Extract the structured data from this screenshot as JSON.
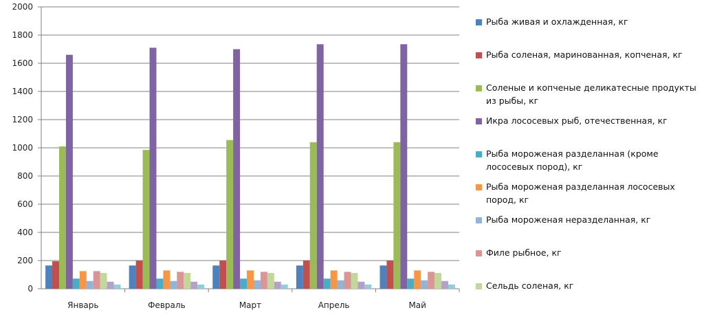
{
  "chart_data": {
    "type": "bar",
    "title": "",
    "xlabel": "",
    "ylabel": "",
    "ylim": [
      0,
      2000
    ],
    "yticks": [
      0,
      200,
      400,
      600,
      800,
      1000,
      1200,
      1400,
      1600,
      1800,
      2000
    ],
    "grid": true,
    "legend_position": "right",
    "categories": [
      "Январь",
      "Февраль",
      "Март",
      "Апрель",
      "Май"
    ],
    "series": [
      {
        "name": "Рыба живая  и охлажденная,  кг",
        "color": "#4f81bd",
        "values": [
          165,
          165,
          165,
          165,
          165
        ]
      },
      {
        "name": "Рыба соленая, маринованная,  копченая,  кг",
        "color": "#c0504d",
        "values": [
          195,
          200,
          200,
          200,
          200
        ]
      },
      {
        "name": "Соленые и копченые деликатесные продукты из рыбы, кг",
        "color": "#9bbb59",
        "values": [
          1010,
          985,
          1055,
          1040,
          1040
        ]
      },
      {
        "name": "Икра лососевых рыб, отечественная, кг",
        "color": "#8064a2",
        "values": [
          1660,
          1710,
          1700,
          1735,
          1735
        ]
      },
      {
        "name": "Рыба мороженая разделанная (кроме лососевых пород), кг",
        "color": "#4bacc6",
        "values": [
          72,
          72,
          72,
          72,
          72
        ]
      },
      {
        "name": "Рыба мороженая разделанная лососевых пород, кг",
        "color": "#f79646",
        "values": [
          125,
          130,
          130,
          130,
          130
        ]
      },
      {
        "name": "Рыба мороженая неразделанная, кг",
        "color": "#95b3d7",
        "values": [
          55,
          55,
          60,
          60,
          60
        ]
      },
      {
        "name": "Филе рыбное, кг",
        "color": "#d99694",
        "values": [
          125,
          120,
          120,
          120,
          120
        ]
      },
      {
        "name": "Сельдь соленая, кг",
        "color": "#c3d69b",
        "values": [
          112,
          112,
          112,
          112,
          112
        ]
      },
      {
        "name": "",
        "color": "#b3a2c7",
        "values": [
          50,
          50,
          50,
          50,
          55
        ]
      },
      {
        "name": "",
        "color": "#93cddd",
        "values": [
          30,
          30,
          30,
          30,
          30
        ]
      }
    ]
  }
}
